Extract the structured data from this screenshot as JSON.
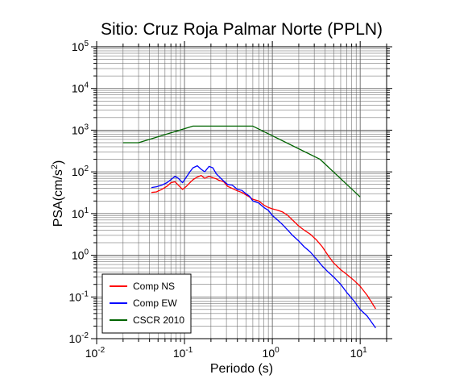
{
  "chart_data": {
    "type": "line",
    "title": "Sitio: Cruz Roja Palmar Norte (PPLN)",
    "xlabel": "Periodo (s)",
    "ylabel": "PSA(cm/s",
    "ylabel_sup": "2",
    "ylabel_close": ")",
    "xscale": "log",
    "yscale": "log",
    "xlim": [
      0.01,
      20
    ],
    "ylim": [
      0.01,
      100000
    ],
    "grid": true,
    "legend_position": "bottom-left",
    "x_ticks": [
      {
        "value": 0.01,
        "base": "10",
        "exp": "-2"
      },
      {
        "value": 0.1,
        "base": "10",
        "exp": "-1"
      },
      {
        "value": 1,
        "base": "10",
        "exp": "0"
      },
      {
        "value": 10,
        "base": "10",
        "exp": "1"
      }
    ],
    "y_ticks": [
      {
        "value": 0.01,
        "base": "10",
        "exp": "-2"
      },
      {
        "value": 0.1,
        "base": "10",
        "exp": "-1"
      },
      {
        "value": 1,
        "base": "10",
        "exp": "0"
      },
      {
        "value": 10,
        "base": "10",
        "exp": "1"
      },
      {
        "value": 100,
        "base": "10",
        "exp": "2"
      },
      {
        "value": 1000,
        "base": "10",
        "exp": "3"
      },
      {
        "value": 10000,
        "base": "10",
        "exp": "4"
      },
      {
        "value": 100000,
        "base": "10",
        "exp": "5"
      }
    ],
    "series": [
      {
        "name": "Comp NS",
        "color": "#ff0000",
        "x": [
          0.042,
          0.048,
          0.055,
          0.063,
          0.07,
          0.078,
          0.085,
          0.095,
          0.105,
          0.115,
          0.125,
          0.14,
          0.155,
          0.17,
          0.19,
          0.21,
          0.23,
          0.25,
          0.28,
          0.31,
          0.35,
          0.4,
          0.45,
          0.5,
          0.55,
          0.6,
          0.7,
          0.8,
          0.9,
          1.0,
          1.15,
          1.3,
          1.5,
          1.7,
          2.0,
          2.3,
          2.7,
          3.2,
          3.7,
          4.3,
          5.0,
          6.0,
          7.0,
          8.5,
          10.0,
          12.0,
          15.0
        ],
        "y": [
          32,
          33,
          38,
          45,
          55,
          58,
          48,
          38,
          45,
          55,
          65,
          75,
          82,
          70,
          78,
          72,
          68,
          62,
          58,
          45,
          40,
          35,
          32,
          28,
          25,
          22,
          20,
          16,
          14,
          13,
          12,
          11,
          9,
          7,
          5,
          4,
          3.2,
          2.3,
          1.6,
          1.0,
          0.65,
          0.45,
          0.35,
          0.25,
          0.18,
          0.11,
          0.052
        ]
      },
      {
        "name": "Comp EW",
        "color": "#0000ff",
        "x": [
          0.042,
          0.048,
          0.055,
          0.063,
          0.07,
          0.078,
          0.085,
          0.095,
          0.105,
          0.115,
          0.125,
          0.14,
          0.155,
          0.17,
          0.19,
          0.21,
          0.23,
          0.25,
          0.28,
          0.31,
          0.35,
          0.4,
          0.45,
          0.5,
          0.55,
          0.6,
          0.7,
          0.8,
          0.9,
          1.0,
          1.15,
          1.3,
          1.5,
          1.7,
          2.0,
          2.3,
          2.7,
          3.2,
          3.7,
          4.3,
          5.0,
          6.0,
          7.0,
          8.5,
          10.0,
          12.0,
          15.0
        ],
        "y": [
          42,
          44,
          48,
          55,
          65,
          78,
          70,
          55,
          75,
          100,
          125,
          140,
          115,
          100,
          135,
          125,
          90,
          75,
          60,
          50,
          48,
          38,
          36,
          30,
          26,
          20,
          18,
          14,
          12,
          9,
          7,
          5.5,
          4,
          3,
          2.2,
          1.6,
          1.2,
          0.8,
          0.55,
          0.4,
          0.3,
          0.2,
          0.13,
          0.08,
          0.05,
          0.035,
          0.018
        ]
      },
      {
        "name": "CSCR 2010",
        "color": "#006400",
        "x": [
          0.02,
          0.03,
          0.125,
          0.6,
          3.5,
          10.0
        ],
        "y": [
          500,
          500,
          1250,
          1250,
          200,
          25
        ]
      }
    ]
  }
}
